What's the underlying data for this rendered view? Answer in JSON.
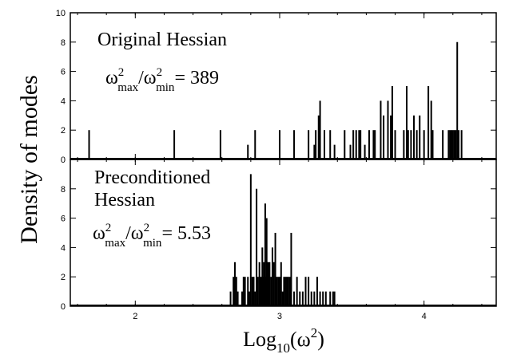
{
  "chart_data": [
    {
      "type": "bar",
      "panel": "top",
      "annotation": {
        "title": "Original Hessian",
        "ratio_sym": "ω",
        "ratio_sup": "2",
        "ratio_max": "max",
        "ratio_slash": "/",
        "ratio_min": "min",
        "ratio_value": "= 389"
      },
      "xlim": [
        1.55,
        4.5
      ],
      "ylim": [
        0,
        10
      ],
      "yticks": [
        "0",
        "2",
        "4",
        "6",
        "8",
        "10"
      ],
      "x": [
        1.68,
        2.27,
        2.59,
        2.78,
        2.83,
        3.0,
        3.1,
        3.2,
        3.24,
        3.25,
        3.27,
        3.28,
        3.31,
        3.35,
        3.38,
        3.45,
        3.49,
        3.51,
        3.53,
        3.55,
        3.56,
        3.59,
        3.62,
        3.65,
        3.66,
        3.7,
        3.72,
        3.75,
        3.77,
        3.78,
        3.8,
        3.86,
        3.88,
        3.89,
        3.91,
        3.93,
        3.95,
        3.97,
        4.0,
        4.03,
        4.05,
        4.06,
        4.13,
        4.17,
        4.18,
        4.19,
        4.2,
        4.21,
        4.22,
        4.23,
        4.24,
        4.26
      ],
      "values": [
        2,
        2,
        2,
        1,
        2,
        2,
        2,
        2,
        1,
        2,
        3,
        4,
        2,
        2,
        1,
        2,
        1,
        2,
        2,
        2,
        2,
        1,
        2,
        2,
        2,
        4,
        3,
        4,
        3,
        5,
        2,
        2,
        5,
        2,
        2,
        3,
        2,
        3,
        2,
        5,
        4,
        2,
        2,
        2,
        2,
        2,
        2,
        2,
        2,
        8,
        2,
        2
      ]
    },
    {
      "type": "bar",
      "panel": "bottom",
      "annotation": {
        "title_line1": "Preconditioned",
        "title_line2": "Hessian",
        "ratio_sym": "ω",
        "ratio_sup": "2",
        "ratio_max": "max",
        "ratio_slash": "/",
        "ratio_min": "min",
        "ratio_value": "= 5.53"
      },
      "xlabel_base": "Log",
      "xlabel_sub": "10",
      "xlabel_arg": "(ω",
      "xlabel_sup": "2",
      "xlabel_close": ")",
      "xticks": [
        "2",
        "3",
        "4"
      ],
      "xtick_values": [
        2,
        3,
        4
      ],
      "xlim": [
        1.55,
        4.5
      ],
      "ylim": [
        0,
        10
      ],
      "yticks": [
        "0",
        "2",
        "4",
        "6",
        "8"
      ],
      "ylabel": "Density of modes",
      "x": [
        2.66,
        2.68,
        2.69,
        2.7,
        2.71,
        2.74,
        2.75,
        2.76,
        2.78,
        2.79,
        2.8,
        2.81,
        2.82,
        2.83,
        2.84,
        2.85,
        2.86,
        2.87,
        2.875,
        2.88,
        2.885,
        2.89,
        2.895,
        2.9,
        2.905,
        2.91,
        2.915,
        2.92,
        2.925,
        2.93,
        2.94,
        2.95,
        2.96,
        2.97,
        2.98,
        2.99,
        3.0,
        3.01,
        3.02,
        3.03,
        3.04,
        3.05,
        3.06,
        3.07,
        3.08,
        3.1,
        3.12,
        3.14,
        3.16,
        3.18,
        3.2,
        3.22,
        3.24,
        3.26,
        3.28,
        3.3,
        3.32,
        3.35,
        3.37,
        3.38
      ],
      "values": [
        1,
        2,
        3,
        2,
        1,
        1,
        2,
        2,
        2,
        1,
        9,
        2,
        2,
        1,
        8,
        2,
        3,
        2,
        1,
        4,
        2,
        3,
        2,
        7,
        2,
        6,
        3,
        3,
        2,
        3,
        2,
        4,
        3,
        5,
        2,
        2,
        2,
        3,
        1,
        2,
        2,
        2,
        2,
        2,
        5,
        1,
        2,
        1,
        1,
        2,
        2,
        1,
        1,
        2,
        1,
        1,
        1,
        1,
        1,
        1
      ]
    }
  ]
}
